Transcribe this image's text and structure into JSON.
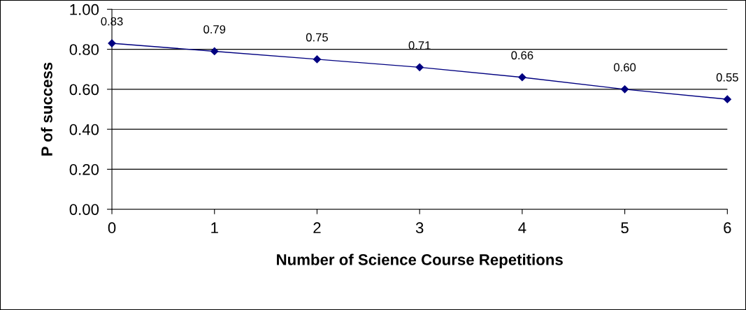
{
  "chart_data": {
    "type": "line",
    "xlabel": "Number of Science Course Repetitions",
    "ylabel": "P of success",
    "x": [
      0,
      1,
      2,
      3,
      4,
      5,
      6
    ],
    "series": [
      {
        "color": "#000080",
        "values": [
          0.83,
          0.79,
          0.75,
          0.71,
          0.66,
          0.6,
          0.55
        ],
        "value_labels": [
          "0.83",
          "0.79",
          "0.75",
          "0.71",
          "0.66",
          "0.60",
          "0.55"
        ]
      }
    ],
    "xlim": [
      0,
      6
    ],
    "xticks": [
      0,
      1,
      2,
      3,
      4,
      5,
      6
    ],
    "ylim": [
      0,
      1
    ],
    "yticks": [
      {
        "value": 0,
        "label": "0.00"
      },
      {
        "value": 0.2,
        "label": "0.20"
      },
      {
        "value": 0.4,
        "label": "0.40"
      },
      {
        "value": 0.6,
        "label": "0.60"
      },
      {
        "value": 0.8,
        "label": "0.80"
      },
      {
        "value": 1,
        "label": "1.00"
      }
    ],
    "grid": "y",
    "marker": "diamond",
    "line_style": "solid"
  }
}
